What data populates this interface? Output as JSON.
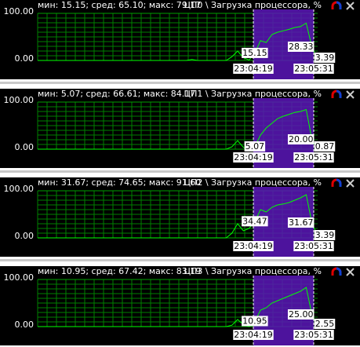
{
  "panels": [
    {
      "stats": "мин: 15.15; сред: 65.10; макс: 79.17",
      "title": "ЦП0 \\ Загрузка процессора, %",
      "ylim": [
        0,
        100
      ],
      "yticks": [
        {
          "value": 0,
          "label": "0.00"
        },
        {
          "value": 100,
          "label": "100.00"
        }
      ],
      "start_time": "23:04:19",
      "end_time": "23:05:31",
      "color": "#00ff00",
      "values": [
        0,
        0,
        0,
        0,
        0,
        0,
        0,
        0,
        0,
        0,
        0,
        0,
        0,
        0,
        0,
        0,
        0,
        0,
        0,
        0,
        0,
        0,
        0,
        0,
        0,
        0,
        0,
        2,
        0,
        0,
        0,
        0,
        0,
        0,
        8,
        20,
        6,
        1,
        15.15,
        42,
        38,
        55,
        60,
        63,
        66,
        70,
        72,
        79.17,
        28.33,
        3.39
      ],
      "value_labels": [
        null,
        null,
        null,
        null,
        null,
        null,
        null,
        null,
        null,
        null,
        null,
        null,
        null,
        null,
        null,
        null,
        null,
        null,
        null,
        null,
        null,
        null,
        null,
        null,
        null,
        null,
        null,
        null,
        null,
        null,
        null,
        null,
        null,
        null,
        null,
        null,
        null,
        null,
        "15.15",
        null,
        null,
        null,
        null,
        null,
        null,
        null,
        null,
        null,
        "28.33",
        "3.39"
      ]
    },
    {
      "stats": "мин: 5.07; сред: 66.61; макс: 84.17",
      "title": "ЦП1 \\ Загрузка процессора, %",
      "ylim": [
        0,
        100
      ],
      "yticks": [
        {
          "value": 0,
          "label": "0.00"
        },
        {
          "value": 100,
          "label": "100.00"
        }
      ],
      "start_time": "23:04:19",
      "end_time": "23:05:31",
      "color": "#00ff00",
      "values": [
        0,
        0,
        0,
        0,
        0,
        0,
        0,
        0,
        0,
        0,
        0,
        0,
        0,
        0,
        0,
        0,
        0,
        0,
        0,
        0,
        0,
        0,
        0,
        0,
        0,
        0,
        0,
        0,
        0,
        0,
        0,
        0,
        0,
        0,
        5,
        18,
        4,
        0,
        5.07,
        30,
        45,
        55,
        65,
        70,
        74,
        78,
        80,
        84.17,
        20,
        0.87
      ],
      "value_labels": [
        null,
        null,
        null,
        null,
        null,
        null,
        null,
        null,
        null,
        null,
        null,
        null,
        null,
        null,
        null,
        null,
        null,
        null,
        null,
        null,
        null,
        null,
        null,
        null,
        null,
        null,
        null,
        null,
        null,
        null,
        null,
        null,
        null,
        null,
        null,
        null,
        null,
        null,
        "5.07",
        null,
        null,
        null,
        null,
        null,
        null,
        null,
        null,
        null,
        "20.00",
        "0.87"
      ]
    },
    {
      "stats": "мин: 31.67; сред: 74.65; макс: 91.60",
      "title": "ЦП2 \\ Загрузка процессора, %",
      "ylim": [
        0,
        100
      ],
      "yticks": [
        {
          "value": 0,
          "label": "0.00"
        },
        {
          "value": 100,
          "label": "100.00"
        }
      ],
      "start_time": "23:04:19",
      "end_time": "23:05:31",
      "color": "#00ff00",
      "values": [
        0,
        0,
        0,
        0,
        0,
        0,
        0,
        0,
        0,
        0,
        0,
        0,
        0,
        0,
        0,
        0,
        0,
        0,
        0,
        0,
        0,
        0,
        0,
        0,
        0,
        0,
        0,
        0,
        0,
        0,
        0,
        0,
        0,
        0,
        10,
        30,
        15,
        20,
        34.47,
        60,
        55,
        65,
        70,
        72,
        75,
        80,
        85,
        91.6,
        31.67,
        3.39
      ],
      "value_labels": [
        null,
        null,
        null,
        null,
        null,
        null,
        null,
        null,
        null,
        null,
        null,
        null,
        null,
        null,
        null,
        null,
        null,
        null,
        null,
        null,
        null,
        null,
        null,
        null,
        null,
        null,
        null,
        null,
        null,
        null,
        null,
        null,
        null,
        null,
        null,
        null,
        null,
        null,
        "34.47",
        null,
        null,
        null,
        null,
        null,
        null,
        null,
        null,
        null,
        "31.67",
        "3.39"
      ]
    },
    {
      "stats": "мин: 10.95; сред: 67.42; макс: 83.19",
      "title": "ЦП3 \\ Загрузка процессора, %",
      "ylim": [
        0,
        100
      ],
      "yticks": [
        {
          "value": 0,
          "label": "0.00"
        },
        {
          "value": 100,
          "label": "100.00"
        }
      ],
      "start_time": "23:04:19",
      "end_time": "23:05:31",
      "color": "#00ff00",
      "values": [
        0,
        0,
        0,
        0,
        0,
        0,
        0,
        0,
        0,
        0,
        0,
        0,
        0,
        0,
        0,
        0,
        0,
        0,
        0,
        0,
        0,
        0,
        0,
        0,
        0,
        0,
        0,
        0,
        0,
        0,
        0,
        0,
        0,
        0,
        3,
        15,
        4,
        0,
        10.95,
        35,
        40,
        50,
        55,
        60,
        65,
        70,
        75,
        83.19,
        25,
        2.55
      ],
      "value_labels": [
        null,
        null,
        null,
        null,
        null,
        null,
        null,
        null,
        null,
        null,
        null,
        null,
        null,
        null,
        null,
        null,
        null,
        null,
        null,
        null,
        null,
        null,
        null,
        null,
        null,
        null,
        null,
        null,
        null,
        null,
        null,
        null,
        null,
        null,
        null,
        null,
        null,
        null,
        "10.95",
        null,
        null,
        null,
        null,
        null,
        null,
        null,
        null,
        null,
        "25.00",
        "2.55"
      ]
    }
  ]
}
